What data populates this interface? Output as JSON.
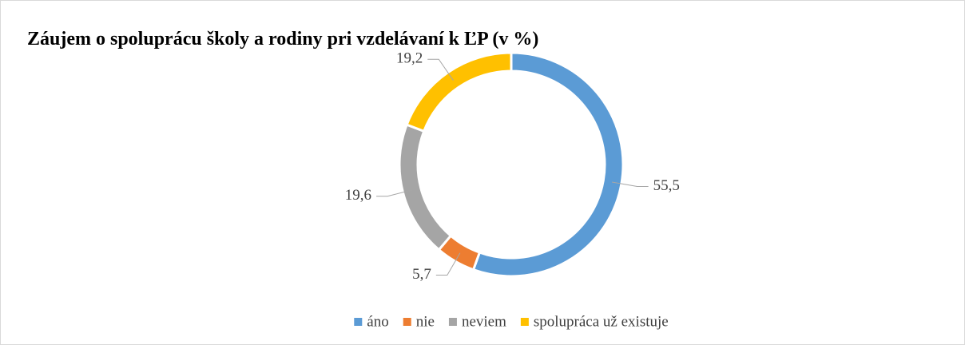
{
  "chart_data": {
    "type": "donut",
    "title": "Záujem o spoluprácu školy a rodiny pri vzdelávaní k ĽP (v %)",
    "categories": [
      "áno",
      "nie",
      "neviem",
      "spolupráca už existuje"
    ],
    "values": [
      55.5,
      5.7,
      19.6,
      19.2
    ],
    "value_labels": [
      "55,5",
      "5,7",
      "19,6",
      "19,2"
    ],
    "colors": [
      "#5b9bd5",
      "#ed7d31",
      "#a5a5a5",
      "#ffc000"
    ],
    "legend": "bottom"
  }
}
